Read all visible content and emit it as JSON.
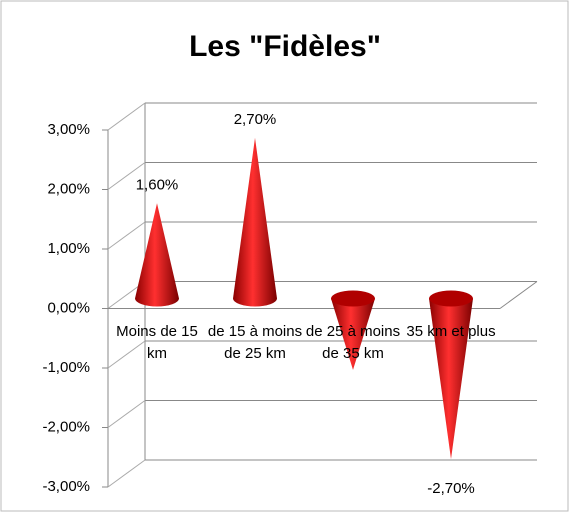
{
  "chart_data": {
    "type": "cone",
    "title": "Les \"Fidèles\"",
    "categories": [
      "Moins de 15 km",
      "de 15 à moins de 25 km",
      "de 25 à moins de 35 km",
      "35 km et plus"
    ],
    "values": [
      1.6,
      2.7,
      -1.2,
      -2.7
    ],
    "value_labels": [
      "1,60%",
      "2,70%",
      null,
      "-2,70%"
    ],
    "color": "#cc0000",
    "ylim": [
      -3,
      3
    ],
    "yticks": [
      {
        "value": -3,
        "label": "-3,00%"
      },
      {
        "value": -2,
        "label": "-2,00%"
      },
      {
        "value": -1,
        "label": "-1,00%"
      },
      {
        "value": 0,
        "label": "0,00%"
      },
      {
        "value": 1,
        "label": "1,00%"
      },
      {
        "value": 2,
        "label": "2,00%"
      },
      {
        "value": 3,
        "label": "3,00%"
      }
    ],
    "grid": true
  }
}
